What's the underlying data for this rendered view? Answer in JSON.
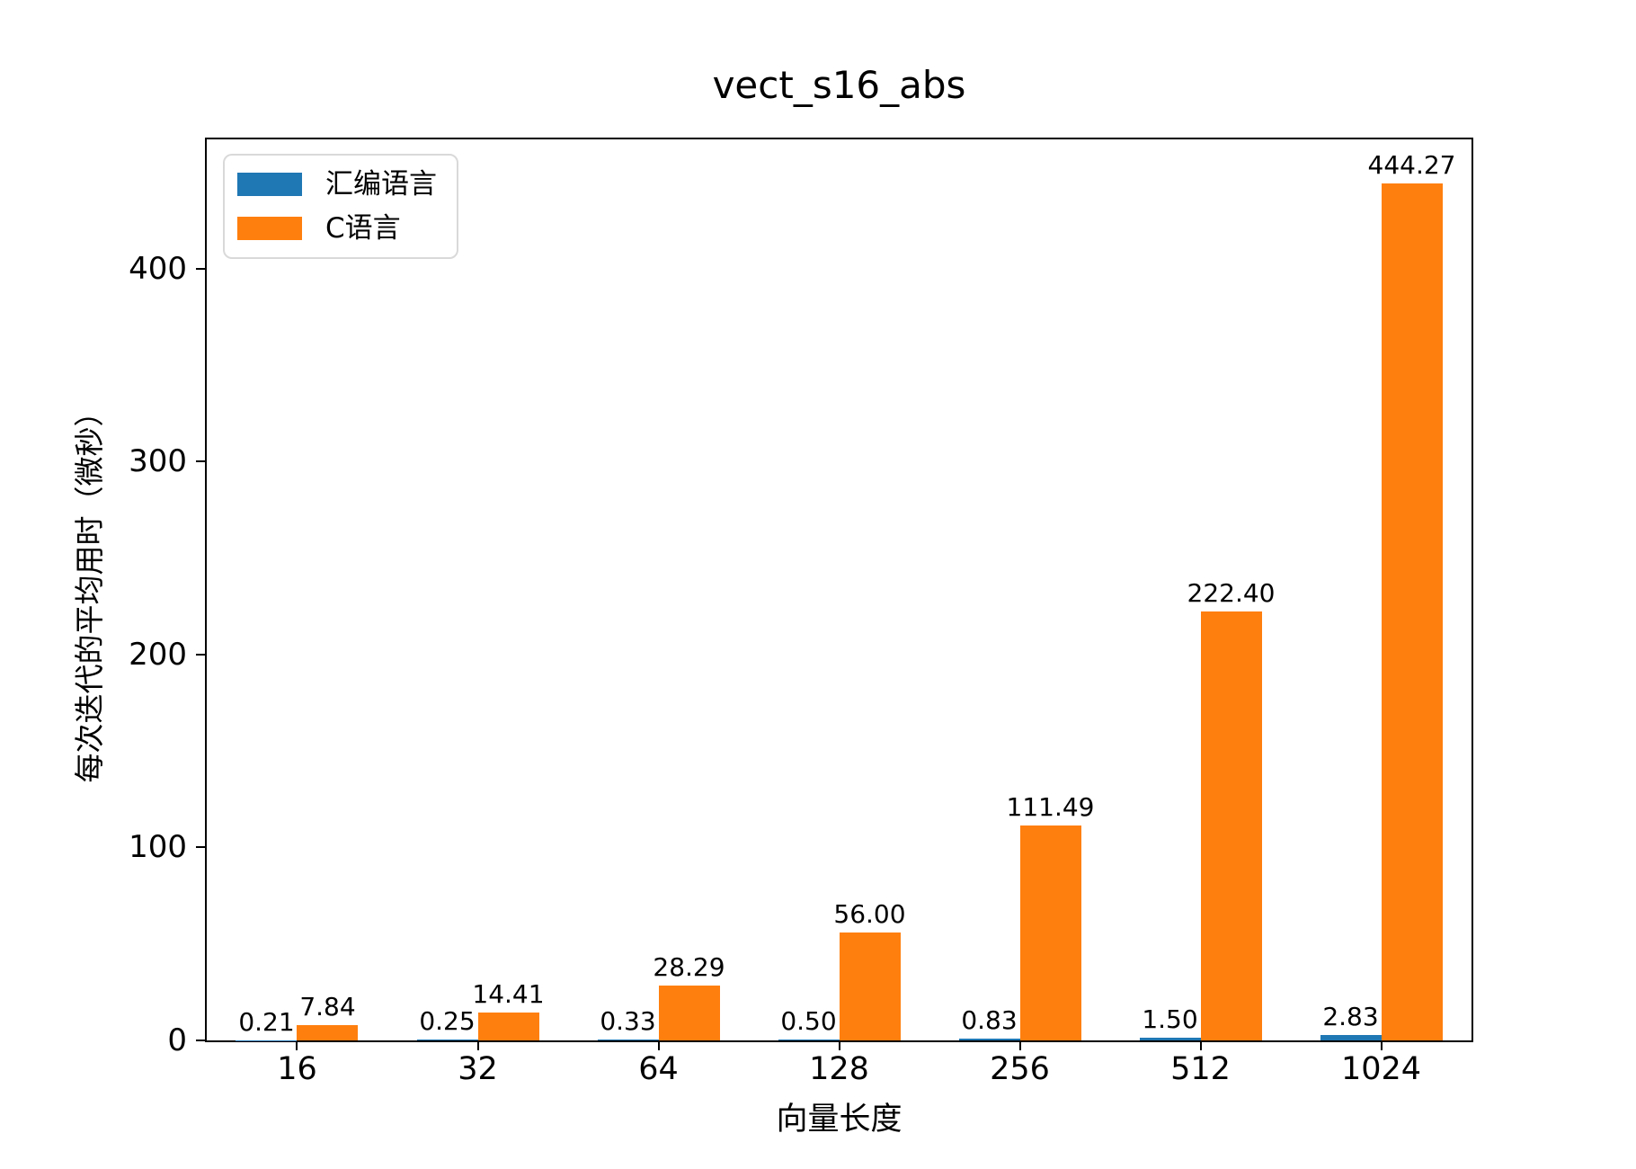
{
  "chart_data": {
    "type": "bar",
    "title": "vect_s16_abs",
    "xlabel": "向量长度",
    "ylabel": "每次迭代的平均用时（微秒）",
    "categories": [
      "16",
      "32",
      "64",
      "128",
      "256",
      "512",
      "1024"
    ],
    "series": [
      {
        "name": "汇编语言",
        "color": "#1f77b4",
        "values": [
          0.21,
          0.25,
          0.33,
          0.5,
          0.83,
          1.5,
          2.83
        ],
        "value_labels": [
          "0.21",
          "0.25",
          "0.33",
          "0.50",
          "0.83",
          "1.50",
          "2.83"
        ]
      },
      {
        "name": "C语言",
        "color": "#ff7f0e",
        "values": [
          7.84,
          14.41,
          28.29,
          56.0,
          111.49,
          222.4,
          444.27
        ],
        "value_labels": [
          "7.84",
          "14.41",
          "28.29",
          "56.00",
          "111.49",
          "222.40",
          "444.27"
        ]
      }
    ],
    "yticks": [
      0,
      100,
      200,
      300,
      400
    ],
    "ylim": [
      0,
      467
    ],
    "grid": false,
    "legend_position": "upper-left",
    "background": "#ffffff",
    "text_color": "#000000"
  }
}
